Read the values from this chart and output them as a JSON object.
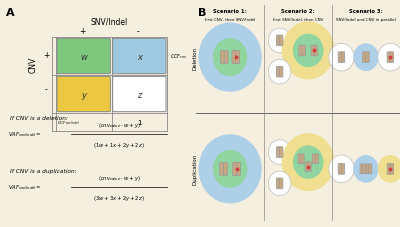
{
  "bg_color": "#F5EFE0",
  "panel_A_label": "A",
  "panel_B_label": "B",
  "table_title": "SNV/Indel",
  "cnv_label": "CNV",
  "cell_w": "w",
  "cell_x": "x",
  "cell_y": "y",
  "cell_z": "z",
  "w_color": "#7DC87D",
  "x_color": "#9FC9E0",
  "y_color": "#EBC840",
  "z_color": "#FFFFFF",
  "deletion_label": "Deletion",
  "duplication_label": "Duplication",
  "scenario1_title": "Scenario 1:",
  "scenario1_sub": "first CNV, then SNV/Indel",
  "scenario2_title": "Scenario 2:",
  "scenario2_sub": "first SNV/Indel, then CNV",
  "scenario3_title": "Scenario 3:",
  "scenario3_sub": "SNV/Indel and CNV in parallel",
  "blue_circle": "#AECFE8",
  "yellow_circle": "#F0DF90",
  "green_inner": "#90D4A0",
  "chrom_color": "#C8A882",
  "red_dot": "#D04040",
  "white_circle": "#FFFFFF",
  "grid_color": "#888888"
}
